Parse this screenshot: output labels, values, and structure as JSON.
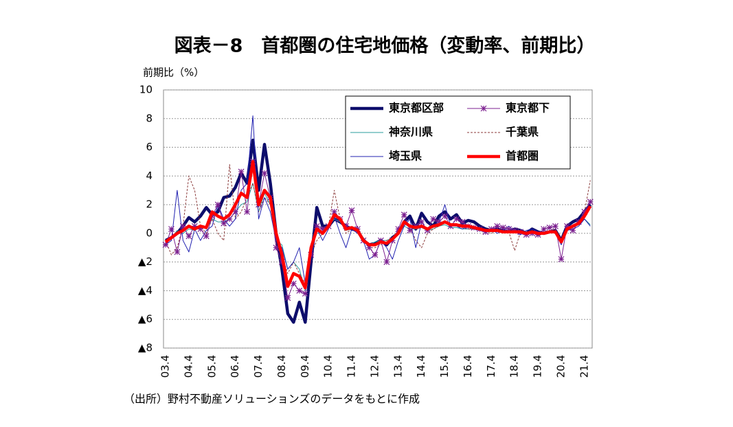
{
  "chart_data": {
    "type": "line",
    "title": "図表－8　首都圏の住宅地価格（変動率、前期比）",
    "y_label": "前期比（%）",
    "source": "（出所）野村不動産ソリューションズのデータをもとに作成",
    "categories": [
      "03.4",
      null,
      null,
      null,
      "04.4",
      null,
      null,
      null,
      "05.4",
      null,
      null,
      null,
      "06.4",
      null,
      null,
      null,
      "07.4",
      null,
      null,
      null,
      "08.4",
      null,
      null,
      null,
      "09.4",
      null,
      null,
      null,
      "10.4",
      null,
      null,
      null,
      "11.4",
      null,
      null,
      null,
      "12.4",
      null,
      null,
      null,
      "13.4",
      null,
      null,
      null,
      "14.4",
      null,
      null,
      null,
      "15.4",
      null,
      null,
      null,
      "16.4",
      null,
      null,
      null,
      "17.4",
      null,
      null,
      null,
      "18.4",
      null,
      null,
      null,
      "19.4",
      null,
      null,
      null,
      "20.4",
      null,
      null,
      null,
      "21.4",
      null
    ],
    "ylim": [
      -8,
      10
    ],
    "yticks": [
      {
        "value": -8,
        "label": "▲8"
      },
      {
        "value": -6,
        "label": "▲6"
      },
      {
        "value": -4,
        "label": "▲4"
      },
      {
        "value": -2,
        "label": "▲2"
      },
      0,
      2,
      4,
      6,
      8,
      10
    ],
    "grid": true,
    "legend": "upper right",
    "series": [
      {
        "name": "東京都区部",
        "color": "#0d0d6b",
        "width": 4.5,
        "dash": "none",
        "marker": "none",
        "values": [
          -0.5,
          -0.3,
          0,
          0.5,
          1.1,
          0.8,
          1.2,
          1.8,
          1.3,
          1.5,
          2.5,
          2.6,
          3.2,
          4.2,
          3.5,
          6.5,
          3.0,
          6.2,
          3.5,
          0,
          -2.5,
          -5.6,
          -6.2,
          -4.8,
          -6.2,
          -2,
          1.8,
          0.5,
          0.5,
          1.0,
          0.8,
          0.5,
          0.3,
          0.2,
          -0.5,
          -0.8,
          -0.7,
          -0.5,
          -0.8,
          -0.3,
          0,
          0.8,
          1.2,
          0.3,
          1.4,
          0.8,
          0.5,
          1.2,
          1.5,
          1.0,
          1.3,
          0.7,
          0.9,
          0.8,
          0.5,
          0.3,
          0.2,
          0.3,
          0.2,
          0.1,
          0.3,
          0.2,
          0,
          0.3,
          0.1,
          0,
          0.1,
          0.2,
          -0.5,
          0.5,
          0.8,
          1.0,
          1.5,
          2.0
        ]
      },
      {
        "name": "東京都下",
        "color": "#7b1f8f",
        "width": 1,
        "dash": "none",
        "marker": "star",
        "values": [
          -0.8,
          0.3,
          -1.3,
          0.5,
          -0.2,
          0.5,
          0.3,
          -0.2,
          1.2,
          2.0,
          0.7,
          1.0,
          1.5,
          4.3,
          1.5,
          5.0,
          2.0,
          4.2,
          2.5,
          -1.0,
          -2.0,
          -4.5,
          -3.5,
          -4.0,
          -4.2,
          -1.5,
          0.5,
          0.3,
          0.5,
          1.5,
          1.0,
          0.5,
          1.6,
          0.3,
          -0.5,
          -1.0,
          -1.5,
          -0.5,
          -2.0,
          -0.5,
          0.3,
          1.3,
          0.2,
          0.5,
          0.8,
          0.2,
          1.0,
          0.8,
          1.2,
          0.5,
          1.0,
          0.8,
          0.5,
          0.4,
          0.3,
          0.1,
          0.3,
          0.5,
          0.4,
          0.3,
          0.2,
          0.1,
          -0.1,
          0,
          -0.1,
          0.3,
          0.4,
          0.5,
          -1.8,
          0.5,
          0.2,
          0.8,
          1.5,
          2.2
        ]
      },
      {
        "name": "神奈川県",
        "color": "#2a9d9d",
        "width": 1,
        "dash": "none",
        "marker": "none",
        "values": [
          -0.5,
          -0.3,
          0.2,
          0.0,
          0.3,
          0.2,
          0.5,
          0.3,
          1.0,
          0.8,
          0.8,
          1.0,
          1.5,
          2.0,
          2.2,
          3.5,
          1.5,
          2.8,
          2.0,
          -0.5,
          -0.8,
          -2.5,
          -2.0,
          -2.5,
          -4.0,
          -1.0,
          0.0,
          0.0,
          0.5,
          1.0,
          0.8,
          0.2,
          0.3,
          0.2,
          -0.3,
          -0.8,
          -0.6,
          -0.5,
          -0.5,
          -0.3,
          0.0,
          0.5,
          0.3,
          0.3,
          0.4,
          0.2,
          0.3,
          0.5,
          0.6,
          0.4,
          0.4,
          0.3,
          0.3,
          0.3,
          0.2,
          0.2,
          0.1,
          0.2,
          0.1,
          0.1,
          0.1,
          0.0,
          0.0,
          0.1,
          0.0,
          0.0,
          0.1,
          0.1,
          -0.5,
          0.2,
          0.4,
          0.6,
          1.0,
          0.6
        ]
      },
      {
        "name": "千葉県",
        "color": "#8b3a3a",
        "width": 1,
        "dash": "3,2",
        "marker": "none",
        "values": [
          -0.5,
          -1.5,
          -1.0,
          0.5,
          4.0,
          3.0,
          0.5,
          0.0,
          1.0,
          0.0,
          -0.5,
          4.8,
          1.0,
          1.5,
          2.5,
          3.5,
          1.5,
          2.5,
          2.0,
          -0.8,
          -1.5,
          -2.8,
          -2.0,
          -2.8,
          -3.5,
          -1.5,
          -0.5,
          0.0,
          0.5,
          3.0,
          1.0,
          0.0,
          0.3,
          0.5,
          -0.5,
          -1.0,
          -1.0,
          -0.8,
          -0.5,
          -0.3,
          0.2,
          0.8,
          0.5,
          -0.5,
          -1.0,
          0.0,
          0.3,
          0.5,
          0.8,
          0.5,
          0.5,
          0.4,
          0.3,
          0.3,
          0.2,
          0.1,
          0.0,
          0.2,
          0.1,
          0.1,
          -1.2,
          0.1,
          0.0,
          0.2,
          -0.2,
          0.0,
          0.2,
          0.3,
          -0.5,
          0.3,
          0.6,
          0.8,
          1.5,
          3.7
        ]
      },
      {
        "name": "埼玉県",
        "color": "#2020b0",
        "width": 1,
        "dash": "none",
        "marker": "none",
        "values": [
          -0.8,
          -0.5,
          3.0,
          -0.5,
          -1.3,
          0.3,
          -0.5,
          0.2,
          0.5,
          2.0,
          1.0,
          0.5,
          1.0,
          3.0,
          3.5,
          8.2,
          1.0,
          2.5,
          1.5,
          -0.5,
          -1.0,
          -2.5,
          -2.0,
          -1.0,
          -3.5,
          -1.8,
          0.3,
          -0.5,
          0.3,
          1.2,
          0.0,
          -1.0,
          0.3,
          0.0,
          -0.5,
          -1.8,
          -1.5,
          -0.5,
          -1.0,
          -1.8,
          -0.5,
          0.5,
          1.0,
          -1.0,
          0.8,
          0.2,
          0.5,
          0.8,
          2.0,
          0.5,
          0.5,
          0.3,
          0.5,
          0.3,
          0.2,
          0.1,
          0.3,
          0.0,
          0.2,
          0.5,
          0.1,
          -0.1,
          0.2,
          0.3,
          0.1,
          0.2,
          0.1,
          0.0,
          -0.8,
          0.2,
          0.3,
          0.5,
          1.0,
          0.5
        ]
      },
      {
        "name": "首都圏",
        "color": "#ff0000",
        "width": 4.5,
        "dash": "none",
        "marker": "none",
        "values": [
          -0.6,
          -0.3,
          0,
          0.2,
          0.5,
          0.3,
          0.5,
          0.4,
          1.5,
          1.2,
          1.0,
          1.3,
          2.0,
          2.8,
          2.5,
          5.0,
          2.0,
          3.0,
          2.5,
          0,
          -1.5,
          -3.7,
          -2.8,
          -3.0,
          -3.8,
          -1.0,
          0.3,
          0,
          0.5,
          1.3,
          1.0,
          0.3,
          0.4,
          0.2,
          -0.5,
          -0.8,
          -0.8,
          -0.6,
          -0.7,
          -0.4,
          0,
          0.8,
          0.5,
          0.4,
          0.5,
          0.3,
          0.5,
          0.6,
          0.8,
          0.6,
          0.6,
          0.5,
          0.5,
          0.4,
          0.3,
          0.2,
          0.2,
          0.2,
          0.1,
          0.1,
          0.1,
          0.1,
          0,
          0.1,
          0,
          0,
          0.1,
          0.1,
          -0.6,
          0.3,
          0.5,
          0.7,
          1.2,
          1.9
        ]
      }
    ]
  }
}
